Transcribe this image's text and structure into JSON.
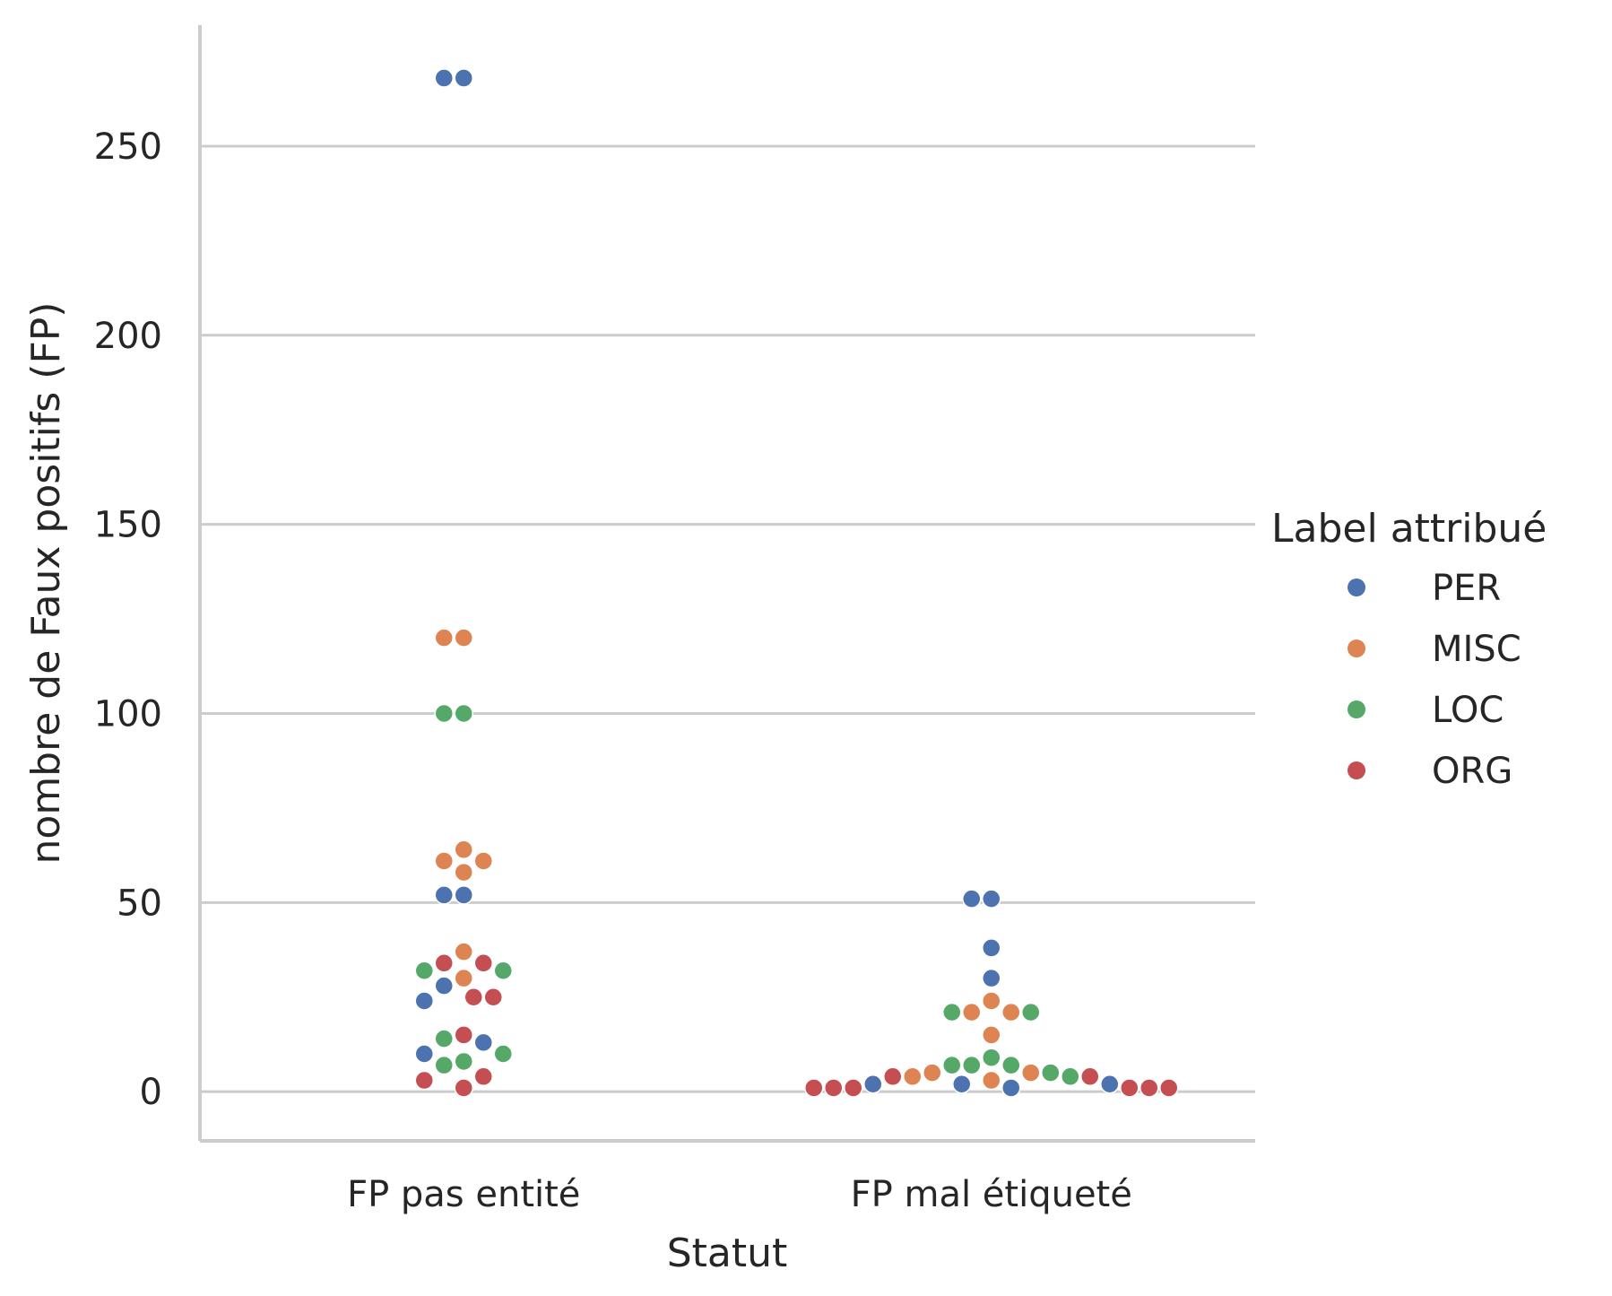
{
  "chart_data": {
    "type": "scatter",
    "subtype": "swarm",
    "title": "",
    "xlabel": "Statut",
    "ylabel": "nombre de Faux positifs (FP)",
    "categories": [
      "FP pas entité",
      "FP mal étiqueté"
    ],
    "ylim": [
      -13,
      282
    ],
    "yticks": [
      0,
      50,
      100,
      150,
      200,
      250
    ],
    "grid": "horizontal",
    "legend": {
      "title": "Label attribué",
      "placement": "right",
      "entries": [
        {
          "name": "PER",
          "color": "#4c72b0"
        },
        {
          "name": "MISC",
          "color": "#dd8452"
        },
        {
          "name": "LOC",
          "color": "#55a868"
        },
        {
          "name": "ORG",
          "color": "#c44e52"
        }
      ]
    },
    "series": [
      {
        "name": "PER",
        "color": "#4c72b0",
        "values_by_category": [
          [
            268,
            268,
            52,
            52,
            28,
            24,
            13,
            10
          ],
          [
            51,
            51,
            38,
            30,
            2,
            1,
            2,
            2
          ]
        ]
      },
      {
        "name": "MISC",
        "color": "#dd8452",
        "values_by_category": [
          [
            120,
            120,
            64,
            61,
            61,
            58,
            37,
            30
          ],
          [
            24,
            21,
            21,
            15,
            5,
            3,
            4,
            5
          ]
        ]
      },
      {
        "name": "LOC",
        "color": "#55a868",
        "values_by_category": [
          [
            100,
            100,
            32,
            32,
            14,
            10,
            8,
            7
          ],
          [
            21,
            21,
            9,
            7,
            7,
            7,
            5,
            4
          ]
        ]
      },
      {
        "name": "ORG",
        "color": "#c44e52",
        "values_by_category": [
          [
            34,
            34,
            25,
            25,
            15,
            4,
            3,
            1
          ],
          [
            4,
            4,
            1,
            1,
            1,
            1,
            1,
            1
          ]
        ]
      }
    ]
  }
}
